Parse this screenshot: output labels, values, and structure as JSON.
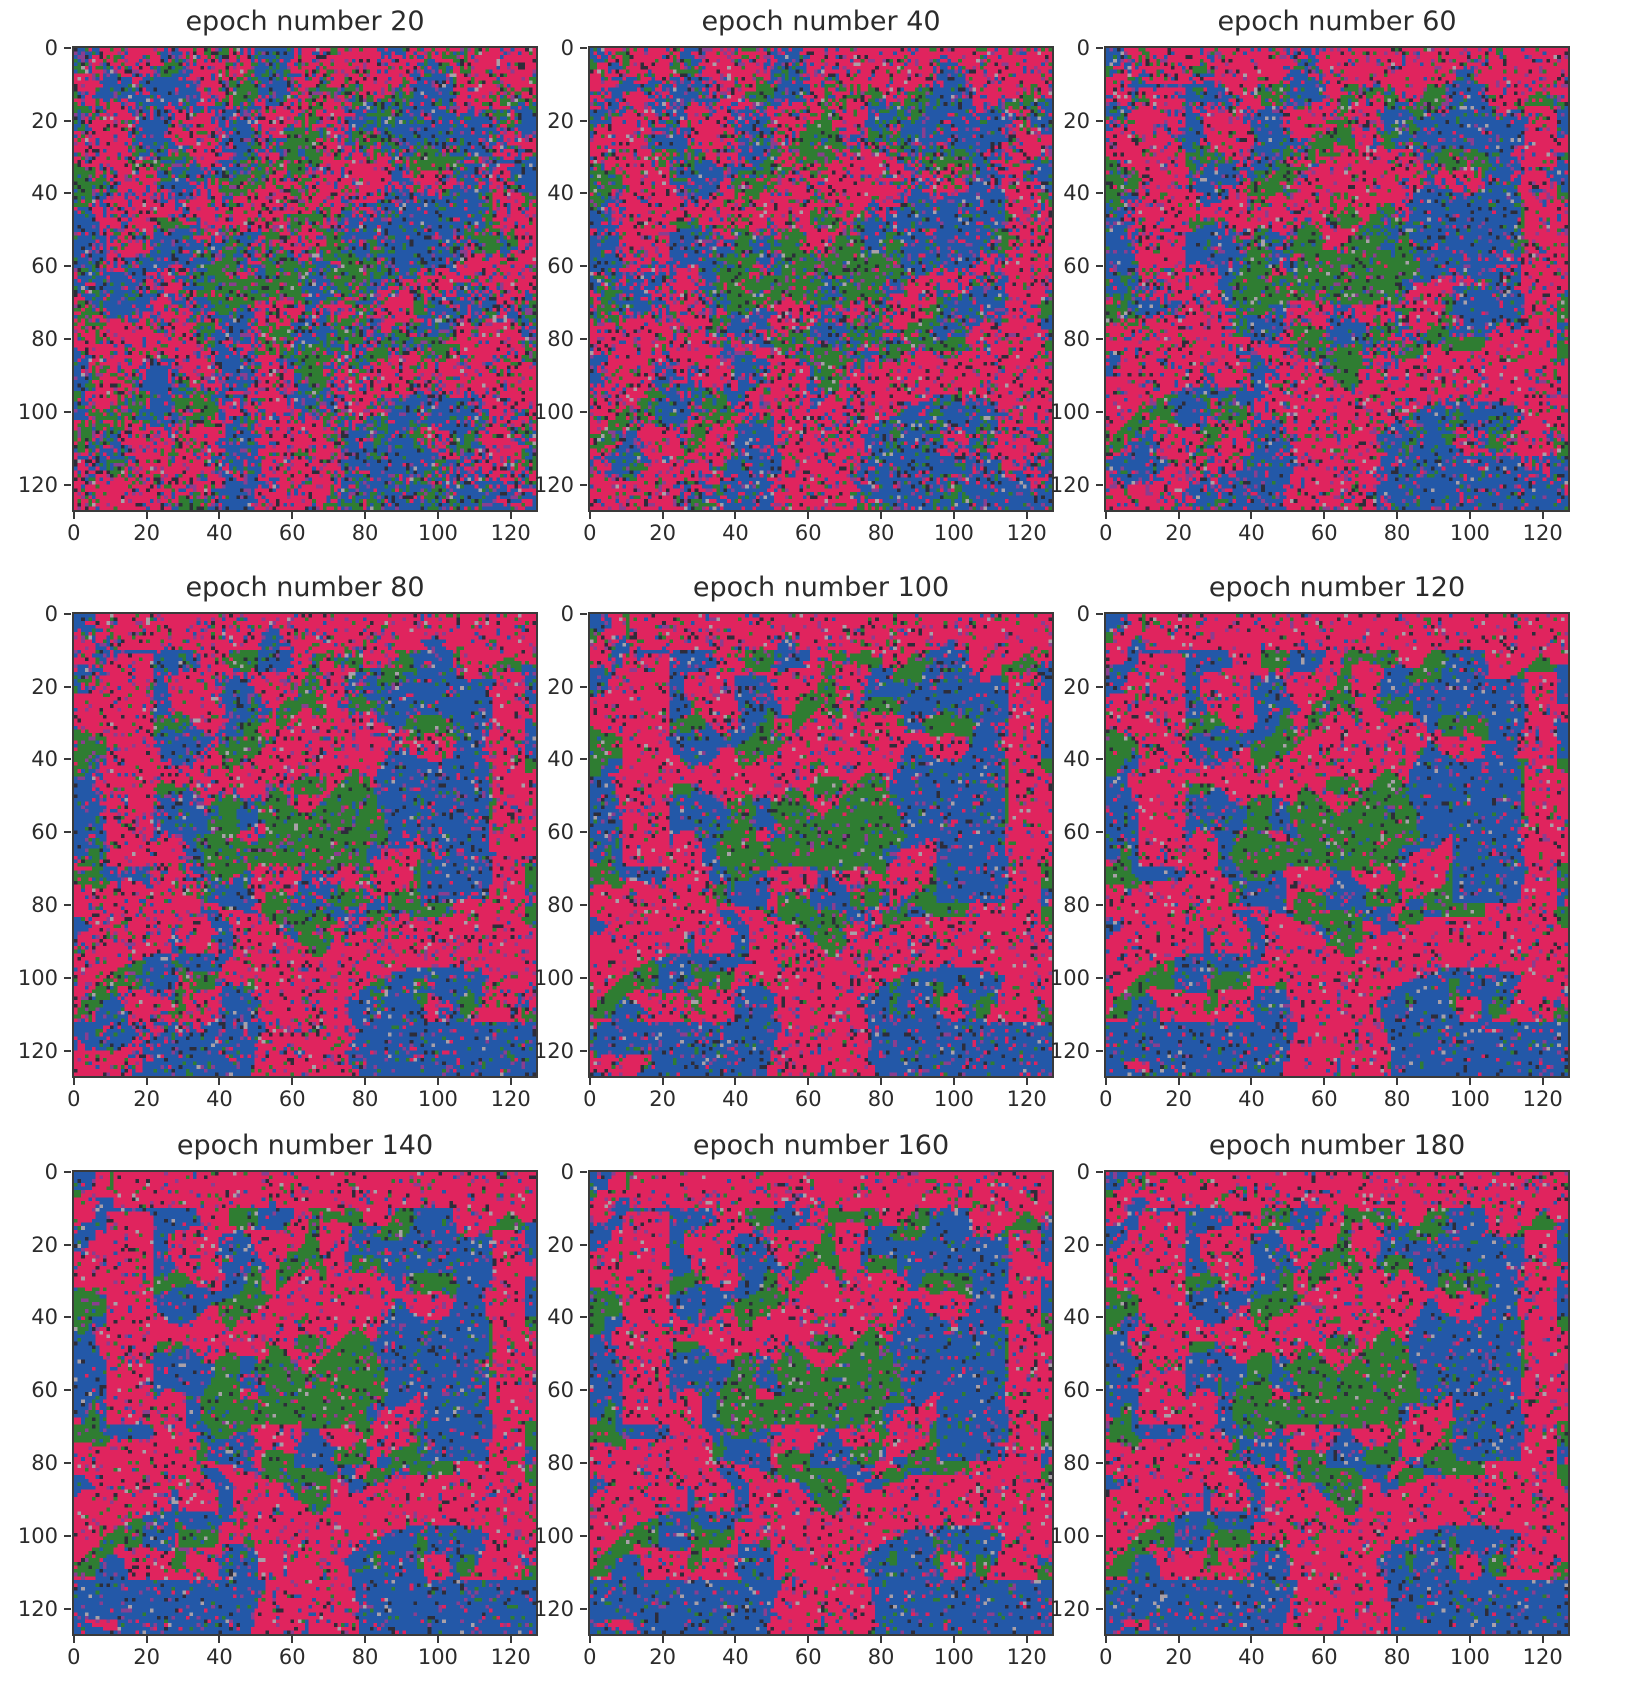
{
  "figure": {
    "panels": [
      {
        "title": "epoch number 20",
        "epoch": 20
      },
      {
        "title": "epoch number 40",
        "epoch": 40
      },
      {
        "title": "epoch number 60",
        "epoch": 60
      },
      {
        "title": "epoch number 80",
        "epoch": 80
      },
      {
        "title": "epoch number 100",
        "epoch": 100
      },
      {
        "title": "epoch number 120",
        "epoch": 120
      },
      {
        "title": "epoch number 140",
        "epoch": 140
      },
      {
        "title": "epoch number 160",
        "epoch": 160
      },
      {
        "title": "epoch number 180",
        "epoch": 180
      }
    ],
    "x_ticks": [
      "0",
      "20",
      "40",
      "60",
      "80",
      "100",
      "120"
    ],
    "y_ticks": [
      "0",
      "20",
      "40",
      "60",
      "80",
      "100",
      "120"
    ],
    "axis_range": [
      0,
      128
    ],
    "palette": {
      "red": "#e0245e",
      "blue": "#2358a8",
      "green": "#2f7d32",
      "dark": "#2d2d3a",
      "purple": "#8a3e8f",
      "grey": "#a9a0a8"
    }
  }
}
